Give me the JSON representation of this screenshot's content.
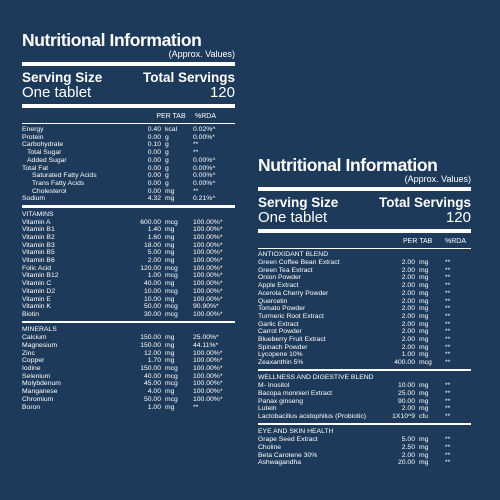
{
  "left": {
    "title": "Nutritional Information",
    "subtitle": "(Approx. Values)",
    "serving_size_label": "Serving Size",
    "total_servings_label": "Total Servings",
    "serving_size_value": "One tablet",
    "total_servings_value": "120",
    "col_per_tab": "PER TAB",
    "col_rda": "%RDA",
    "sections": [
      {
        "title": "",
        "rows": [
          {
            "name": "Energy",
            "amt": "0.40",
            "unit": "kcal",
            "rda": "0.02%^",
            "indent": 0
          },
          {
            "name": "Protein",
            "amt": "0.00",
            "unit": "g",
            "rda": "0.00%*",
            "indent": 0
          },
          {
            "name": "Carbohydrate",
            "amt": "0.10",
            "unit": "g",
            "rda": "**",
            "indent": 0
          },
          {
            "name": "Total Sugar",
            "amt": "0.00",
            "unit": "g",
            "rda": "**",
            "indent": 1
          },
          {
            "name": "Added Sugar",
            "amt": "0.00",
            "unit": "g",
            "rda": "0.00%^",
            "indent": 1
          },
          {
            "name": "Total Fat",
            "amt": "0.00",
            "unit": "g",
            "rda": "0.00%^",
            "indent": 0
          },
          {
            "name": "Saturated Fatty Acids",
            "amt": "0.00",
            "unit": "g",
            "rda": "0.00%^",
            "indent": 2
          },
          {
            "name": "Trans Fatty Acids",
            "amt": "0.00",
            "unit": "g",
            "rda": "0.00%^",
            "indent": 2
          },
          {
            "name": "Cholesterol",
            "amt": "0.00",
            "unit": "mg",
            "rda": "**",
            "indent": 2
          },
          {
            "name": "Sodium",
            "amt": "4.32",
            "unit": "mg",
            "rda": "0.21%^",
            "indent": 0
          }
        ]
      },
      {
        "title": "VITAMINS",
        "rows": [
          {
            "name": "Vitamin A",
            "amt": "600.00",
            "unit": "mcg",
            "rda": "100.00%*",
            "indent": 0
          },
          {
            "name": "Vitamin B1",
            "amt": "1.40",
            "unit": "mg",
            "rda": "100.00%*",
            "indent": 0
          },
          {
            "name": "Vitamin B2",
            "amt": "1.60",
            "unit": "mg",
            "rda": "100.00%*",
            "indent": 0
          },
          {
            "name": "Vitamin B3",
            "amt": "18.00",
            "unit": "mg",
            "rda": "100.00%*",
            "indent": 0
          },
          {
            "name": "Vitamin B5",
            "amt": "5.00",
            "unit": "mg",
            "rda": "100.00%*",
            "indent": 0
          },
          {
            "name": "Vitamin B6",
            "amt": "2.00",
            "unit": "mg",
            "rda": "100.00%*",
            "indent": 0
          },
          {
            "name": "Folic Acid",
            "amt": "120.00",
            "unit": "mcg",
            "rda": "100.00%*",
            "indent": 0
          },
          {
            "name": "Vitamin B12",
            "amt": "1.00",
            "unit": "mcg",
            "rda": "100.00%*",
            "indent": 0
          },
          {
            "name": "Vitamin C",
            "amt": "40.00",
            "unit": "mg",
            "rda": "100.00%*",
            "indent": 0
          },
          {
            "name": "Vitamin D2",
            "amt": "10.00",
            "unit": "mcg",
            "rda": "100.00%*",
            "indent": 0
          },
          {
            "name": "Vitamin E",
            "amt": "10.00",
            "unit": "mg",
            "rda": "100.00%*",
            "indent": 0
          },
          {
            "name": "Vitamin K",
            "amt": "50.00",
            "unit": "mcg",
            "rda": "90.90%*",
            "indent": 0
          },
          {
            "name": "Biotin",
            "amt": "30.00",
            "unit": "mcg",
            "rda": "100.00%*",
            "indent": 0
          }
        ]
      },
      {
        "title": "MINERALS",
        "rows": [
          {
            "name": "Calcium",
            "amt": "150.00",
            "unit": "mg",
            "rda": "25.00%*",
            "indent": 0
          },
          {
            "name": "Magnesium",
            "amt": "150.00",
            "unit": "mg",
            "rda": "44.11%*",
            "indent": 0
          },
          {
            "name": "Zinc",
            "amt": "12.00",
            "unit": "mg",
            "rda": "100.00%*",
            "indent": 0
          },
          {
            "name": "Copper",
            "amt": "1.70",
            "unit": "mg",
            "rda": "100.00%*",
            "indent": 0
          },
          {
            "name": "Iodine",
            "amt": "150.00",
            "unit": "mcg",
            "rda": "100.00%*",
            "indent": 0
          },
          {
            "name": "Selenium",
            "amt": "40.00",
            "unit": "mcg",
            "rda": "100.00%*",
            "indent": 0
          },
          {
            "name": "Molybdenum",
            "amt": "45.00",
            "unit": "mcg",
            "rda": "100.00%*",
            "indent": 0
          },
          {
            "name": "Manganese",
            "amt": "4.00",
            "unit": "mg",
            "rda": "100.00%*",
            "indent": 0
          },
          {
            "name": "Chromium",
            "amt": "50.00",
            "unit": "mcg",
            "rda": "100.00%*",
            "indent": 0
          },
          {
            "name": "Boron",
            "amt": "1.00",
            "unit": "mg",
            "rda": "**",
            "indent": 0
          }
        ]
      }
    ]
  },
  "right": {
    "title": "Nutritional Information",
    "subtitle": "(Approx. Values)",
    "serving_size_label": "Serving Size",
    "total_servings_label": "Total Servings",
    "serving_size_value": "One tablet",
    "total_servings_value": "120",
    "col_per_tab": "PER TAB",
    "col_rda": "%RDA",
    "sections": [
      {
        "title": "ANTIOXIDANT BLEND",
        "rows": [
          {
            "name": "Green Coffee Bean Extract",
            "amt": "2.00",
            "unit": "mg",
            "rda": "**"
          },
          {
            "name": "Green Tea Extract",
            "amt": "2.00",
            "unit": "mg",
            "rda": "**"
          },
          {
            "name": "Onion Powder",
            "amt": "2.00",
            "unit": "mg",
            "rda": "**"
          },
          {
            "name": "Apple Extract",
            "amt": "2.00",
            "unit": "mg",
            "rda": "**"
          },
          {
            "name": "Acerola Cherry Powder",
            "amt": "2.00",
            "unit": "mg",
            "rda": "**"
          },
          {
            "name": "Quercetin",
            "amt": "2.00",
            "unit": "mg",
            "rda": "**"
          },
          {
            "name": "Tomato Powder",
            "amt": "2.00",
            "unit": "mg",
            "rda": "**"
          },
          {
            "name": "Turmeric Root Extract",
            "amt": "2.00",
            "unit": "mg",
            "rda": "**"
          },
          {
            "name": "Garlic Extract",
            "amt": "2.00",
            "unit": "mg",
            "rda": "**"
          },
          {
            "name": "Carrot Powder",
            "amt": "2.00",
            "unit": "mg",
            "rda": "**"
          },
          {
            "name": "Blueberry Fruit Extract",
            "amt": "2.00",
            "unit": "mg",
            "rda": "**"
          },
          {
            "name": "Spinach Powder",
            "amt": "2.00",
            "unit": "mg",
            "rda": "**"
          },
          {
            "name": "Lycopene 10%",
            "amt": "1.00",
            "unit": "mg",
            "rda": "**"
          },
          {
            "name": "Zeaxanthin 5%",
            "amt": "400.00",
            "unit": "mcg",
            "rda": "**"
          }
        ]
      },
      {
        "title": "WELLNESS AND DIGESTIVE BLEND",
        "rows": [
          {
            "name": "M- Inositol",
            "amt": "10.00",
            "unit": "mg",
            "rda": "**"
          },
          {
            "name": "Bacopa monnieri Extract",
            "amt": "25.00",
            "unit": "mg",
            "rda": "**"
          },
          {
            "name": "Panax ginseng",
            "amt": "90.00",
            "unit": "mg",
            "rda": "**"
          },
          {
            "name": "Lutein",
            "amt": "2.00",
            "unit": "mg",
            "rda": "**"
          },
          {
            "name": "Lactobacillus acidophilus (Probiotic)",
            "amt": "1X10^9",
            "unit": "cfu",
            "rda": "**"
          }
        ]
      },
      {
        "title": "EYE AND SKIN HEALTH",
        "rows": [
          {
            "name": "Grape Seed Extract",
            "amt": "5.00",
            "unit": "mg",
            "rda": "**"
          },
          {
            "name": "Choline",
            "amt": "2.50",
            "unit": "mg",
            "rda": "**"
          },
          {
            "name": "Beta Carotene 30%",
            "amt": "2.00",
            "unit": "mg",
            "rda": "**"
          },
          {
            "name": "Ashwagandha",
            "amt": "20.00",
            "unit": "mg",
            "rda": "**"
          }
        ]
      }
    ]
  },
  "colors": {
    "background": "#1e3a5a",
    "text": "#ffffff"
  }
}
